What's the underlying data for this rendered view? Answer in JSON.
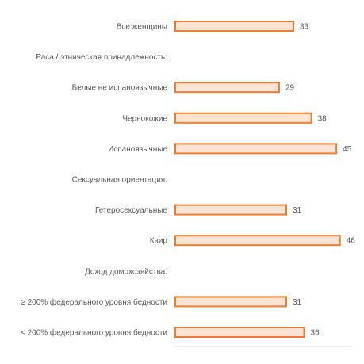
{
  "chart_data": {
    "type": "bar",
    "orientation": "horizontal",
    "xlim": [
      0,
      50
    ],
    "grid": false,
    "legend": "none",
    "colors": {
      "bar_fill": "#fde3d3",
      "bar_stroke": "#ed7d31",
      "text": "#595959",
      "axis": "#d9d9d9"
    },
    "rows": [
      {
        "label": "Все женщины",
        "value": 33
      },
      {
        "label": "Раса / этническая принадлежность:",
        "value": null,
        "header": true
      },
      {
        "label": "Белые не испаноязычные",
        "value": 29
      },
      {
        "label": "Чернокожие",
        "value": 38
      },
      {
        "label": "Испаноязычные",
        "value": 45
      },
      {
        "label": "Сексуальная ориентация:",
        "value": null,
        "header": true
      },
      {
        "label": "Гетеросексуальные",
        "value": 31
      },
      {
        "label": "Квир",
        "value": 46
      },
      {
        "label": "Доход домохозяйства:",
        "value": null,
        "header": true
      },
      {
        "label": "≥ 200% федерального уровня бедности",
        "value": 31
      },
      {
        "label": "< 200% федерального уровня бедности",
        "value": 36
      }
    ]
  }
}
